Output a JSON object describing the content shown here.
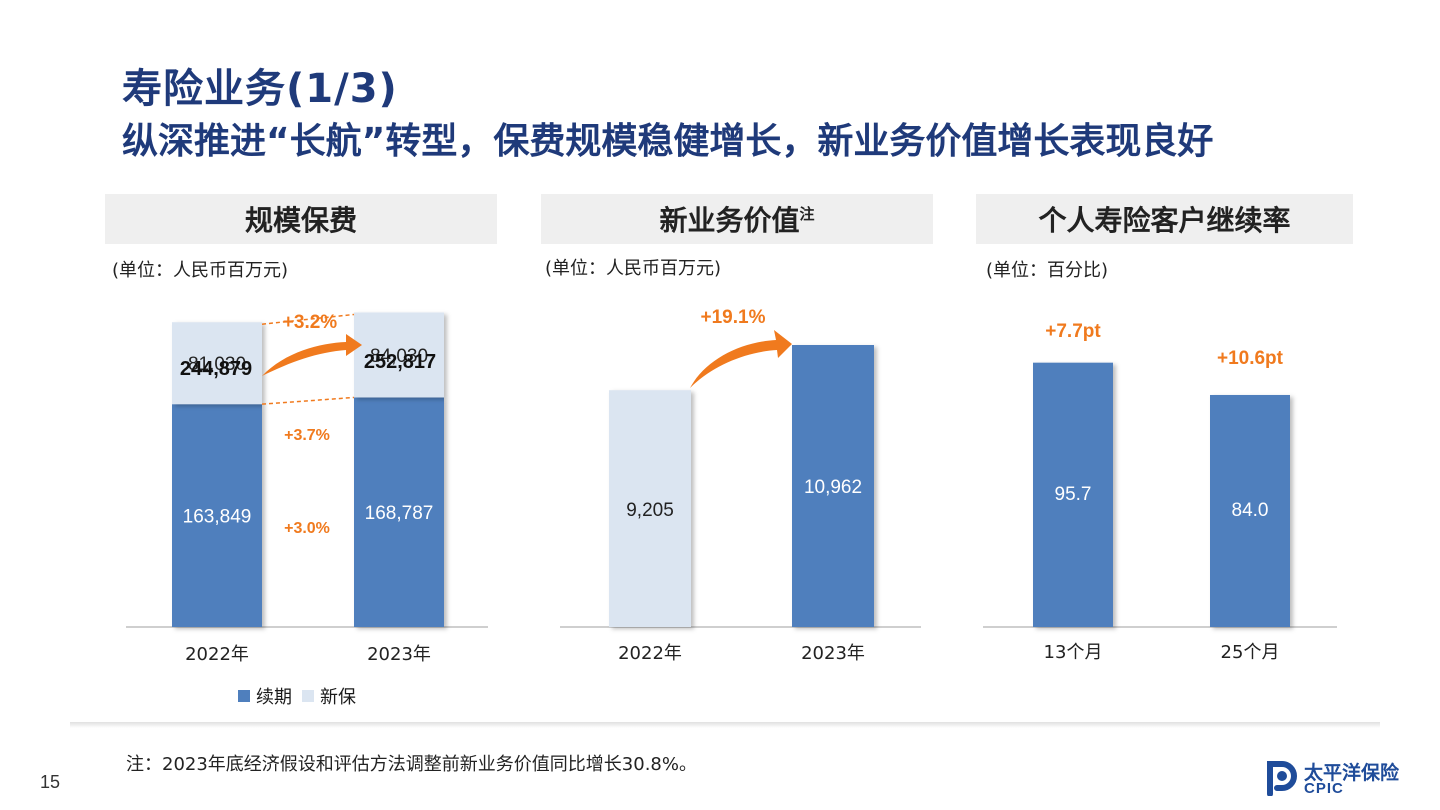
{
  "title": "寿险业务(1/3)",
  "subtitle": "纵深推进“长航”转型，保费规模稳健增长，新业务价值增长表现良好",
  "colors": {
    "title": "#1f3a7a",
    "bar_dark": "#4f7fbd",
    "bar_light": "#dbe5f1",
    "accent": "#f07a1e"
  },
  "panels": [
    {
      "header": "规模保费",
      "unit": "(单位：人民币百万元)"
    },
    {
      "header": "新业务价值",
      "header_sup": "注",
      "unit": "(单位：人民币百万元)"
    },
    {
      "header": "个人寿险客户继续率",
      "unit": "(单位：百分比)"
    }
  ],
  "chart_data": [
    {
      "type": "bar",
      "stacked": true,
      "categories": [
        "2022年",
        "2023年"
      ],
      "series": [
        {
          "name": "续期",
          "values": [
            163849,
            168787
          ],
          "labels": [
            "163,849",
            "168,787"
          ]
        },
        {
          "name": "新保",
          "values": [
            81030,
            84030
          ],
          "labels": [
            "81,030",
            "84,030"
          ]
        }
      ],
      "totals": [
        244879,
        252817
      ],
      "total_labels": [
        "244,879",
        "252,817"
      ],
      "growth_total": "+3.2%",
      "growth_new": "+3.7%",
      "growth_renewal": "+3.0%"
    },
    {
      "type": "bar",
      "categories": [
        "2022年",
        "2023年"
      ],
      "values": [
        9205,
        10962
      ],
      "labels": [
        "9,205",
        "10,962"
      ],
      "growth": "+19.1%"
    },
    {
      "type": "bar",
      "categories": [
        "13个月",
        "25个月"
      ],
      "values": [
        95.7,
        84.0
      ],
      "labels": [
        "95.7",
        "84.0"
      ],
      "changes": [
        "+7.7pt",
        "+10.6pt"
      ]
    }
  ],
  "legend": [
    {
      "name": "续期",
      "color": "#4f7fbd"
    },
    {
      "name": "新保",
      "color": "#dbe5f1"
    }
  ],
  "footnote": "注：2023年底经济假设和评估方法调整前新业务价值同比增长30.8%。",
  "page_number": "15",
  "logo": {
    "cn": "太平洋保险",
    "en": "CPIC"
  }
}
